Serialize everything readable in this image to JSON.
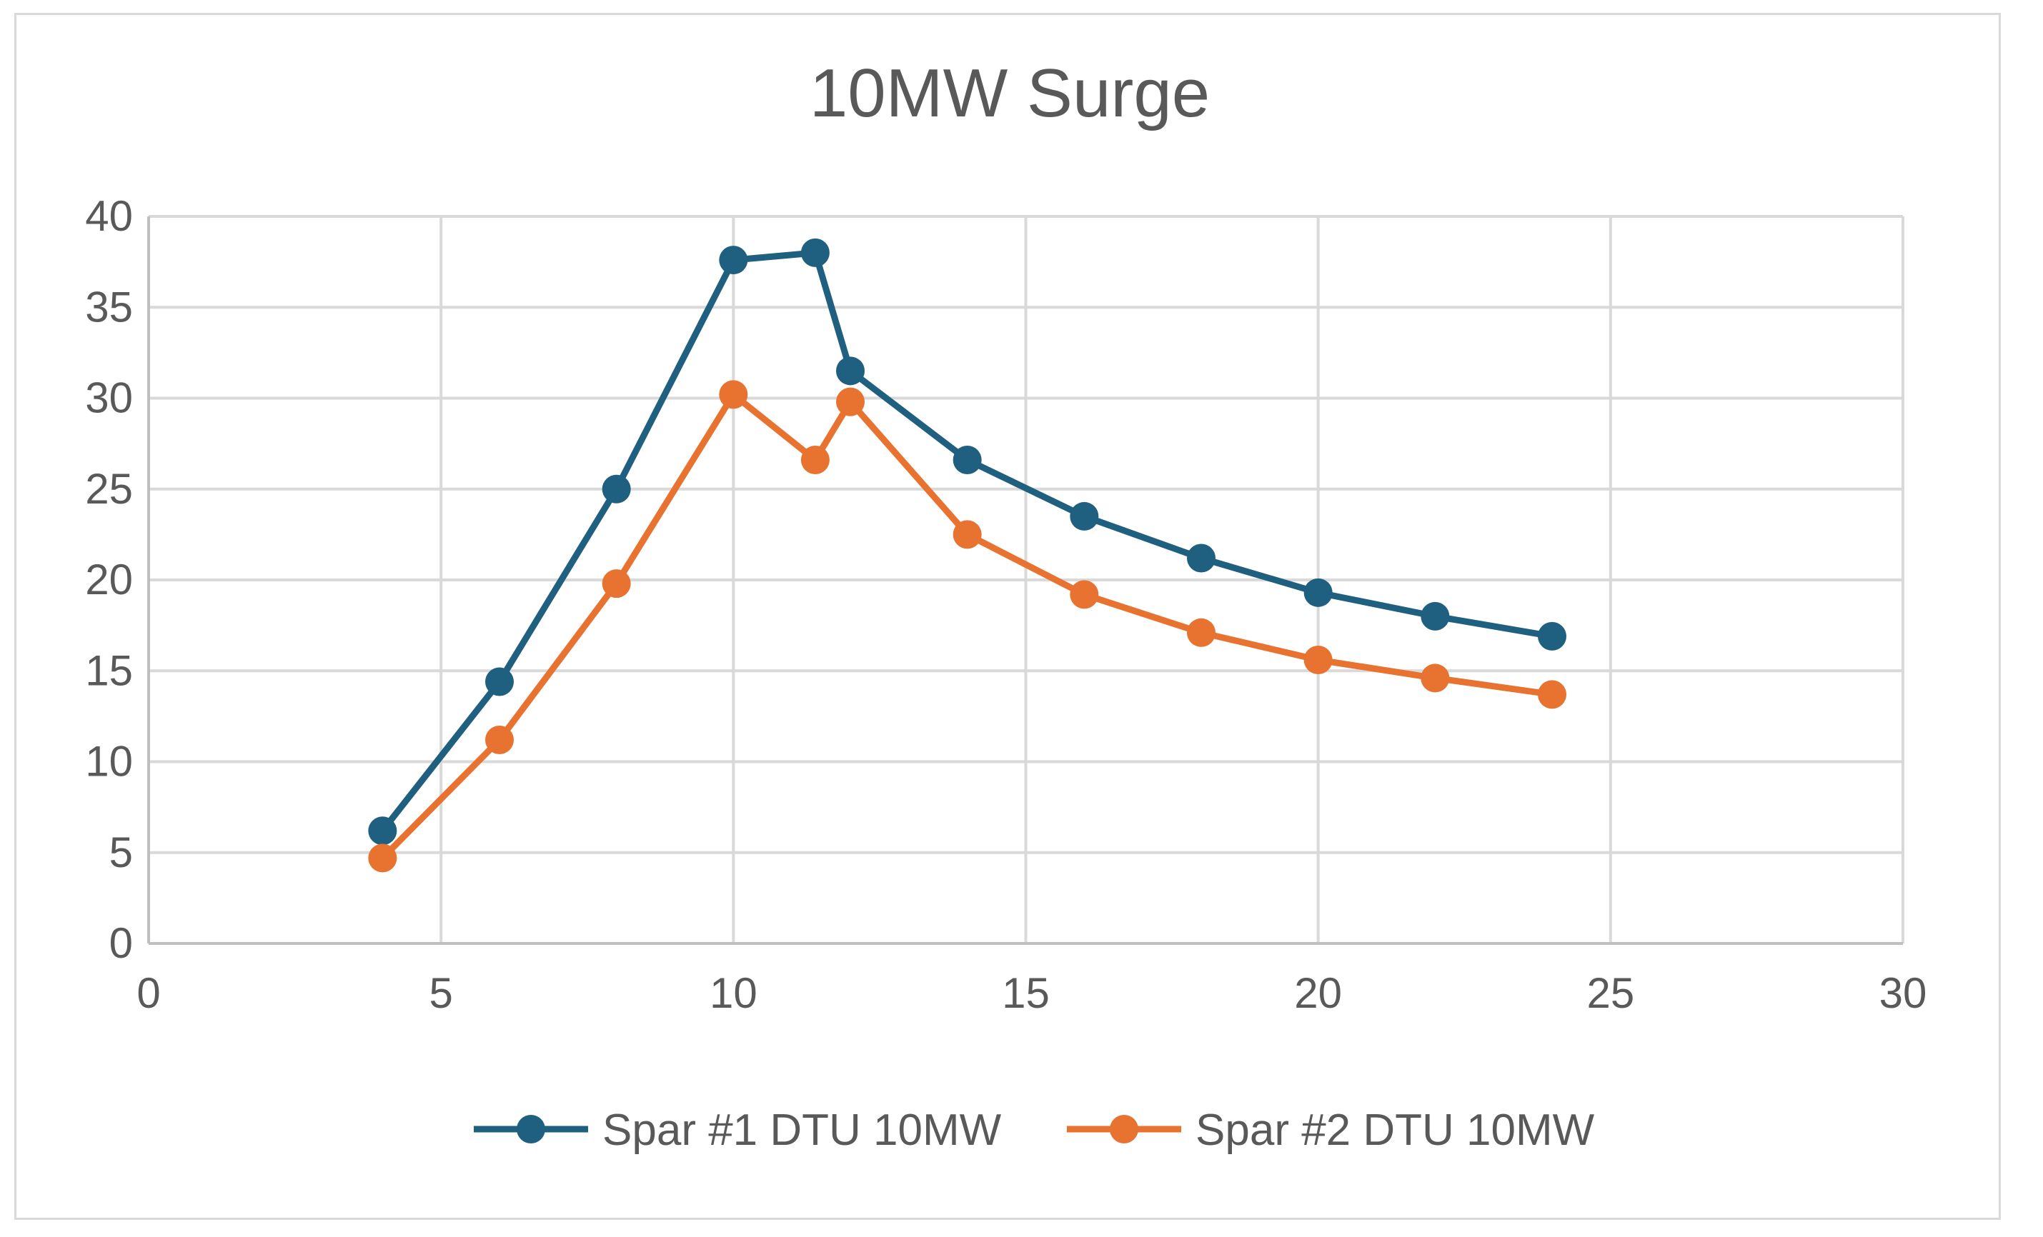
{
  "chart_data": {
    "type": "line",
    "title": "10MW Surge",
    "xlabel": "",
    "ylabel": "",
    "xlim": [
      0,
      30
    ],
    "ylim": [
      0,
      40
    ],
    "x_ticks": [
      0,
      5,
      10,
      15,
      20,
      25,
      30
    ],
    "y_ticks": [
      0,
      5,
      10,
      15,
      20,
      25,
      30,
      35,
      40
    ],
    "grid": true,
    "legend_position": "bottom",
    "series": [
      {
        "name": "Spar #1 DTU 10MW",
        "color": "#1f5f7f",
        "x": [
          4,
          6,
          8,
          10,
          11.4,
          12,
          14,
          16,
          18,
          20,
          22,
          24
        ],
        "y": [
          6.2,
          14.4,
          25.0,
          37.6,
          38.0,
          31.5,
          26.6,
          23.5,
          21.2,
          19.3,
          18.0,
          16.9
        ]
      },
      {
        "name": "Spar #2 DTU 10MW",
        "color": "#e87330",
        "x": [
          4,
          6,
          8,
          10,
          11.4,
          12,
          14,
          16,
          18,
          20,
          22,
          24
        ],
        "y": [
          4.7,
          11.2,
          19.8,
          30.2,
          26.6,
          29.8,
          22.5,
          19.2,
          17.1,
          15.6,
          14.6,
          13.7
        ]
      }
    ]
  }
}
